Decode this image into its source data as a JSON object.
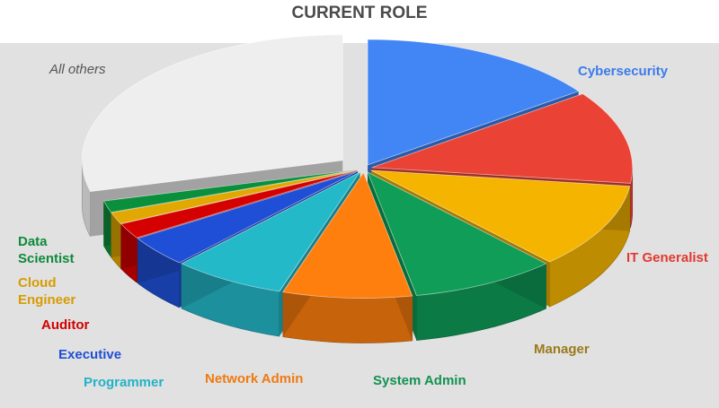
{
  "chart_data": {
    "type": "pie",
    "title": "CURRENT ROLE",
    "categories": [
      "Cybersecurity",
      "IT Generalist",
      "Manager",
      "System Admin",
      "Network Admin",
      "Programmer",
      "Executive",
      "Auditor",
      "Cloud Engineer",
      "Data Scientist",
      "All others"
    ],
    "values": [
      15.0,
      12.0,
      11.0,
      9.0,
      8.0,
      7.0,
      4.0,
      2.0,
      1.5,
      1.5,
      29.0
    ],
    "unit": "share of respondents (estimated %)",
    "colors": [
      "#4285f4",
      "#ea4335",
      "#f4b400",
      "#0f9d58",
      "#ff7f0e",
      "#24b9c9",
      "#1f4fd6",
      "#d50000",
      "#e0a800",
      "#0a8f3c",
      "#eeeeee"
    ],
    "label_colors": [
      "#3b7bea",
      "#e2382f",
      "#9a7a1a",
      "#12924f",
      "#f07a10",
      "#22b3c6",
      "#1f4fd6",
      "#d10000",
      "#d69c00",
      "#0e8a3a",
      "#555555"
    ],
    "exploded": [
      "All others"
    ],
    "legend": "labels next to slices"
  }
}
